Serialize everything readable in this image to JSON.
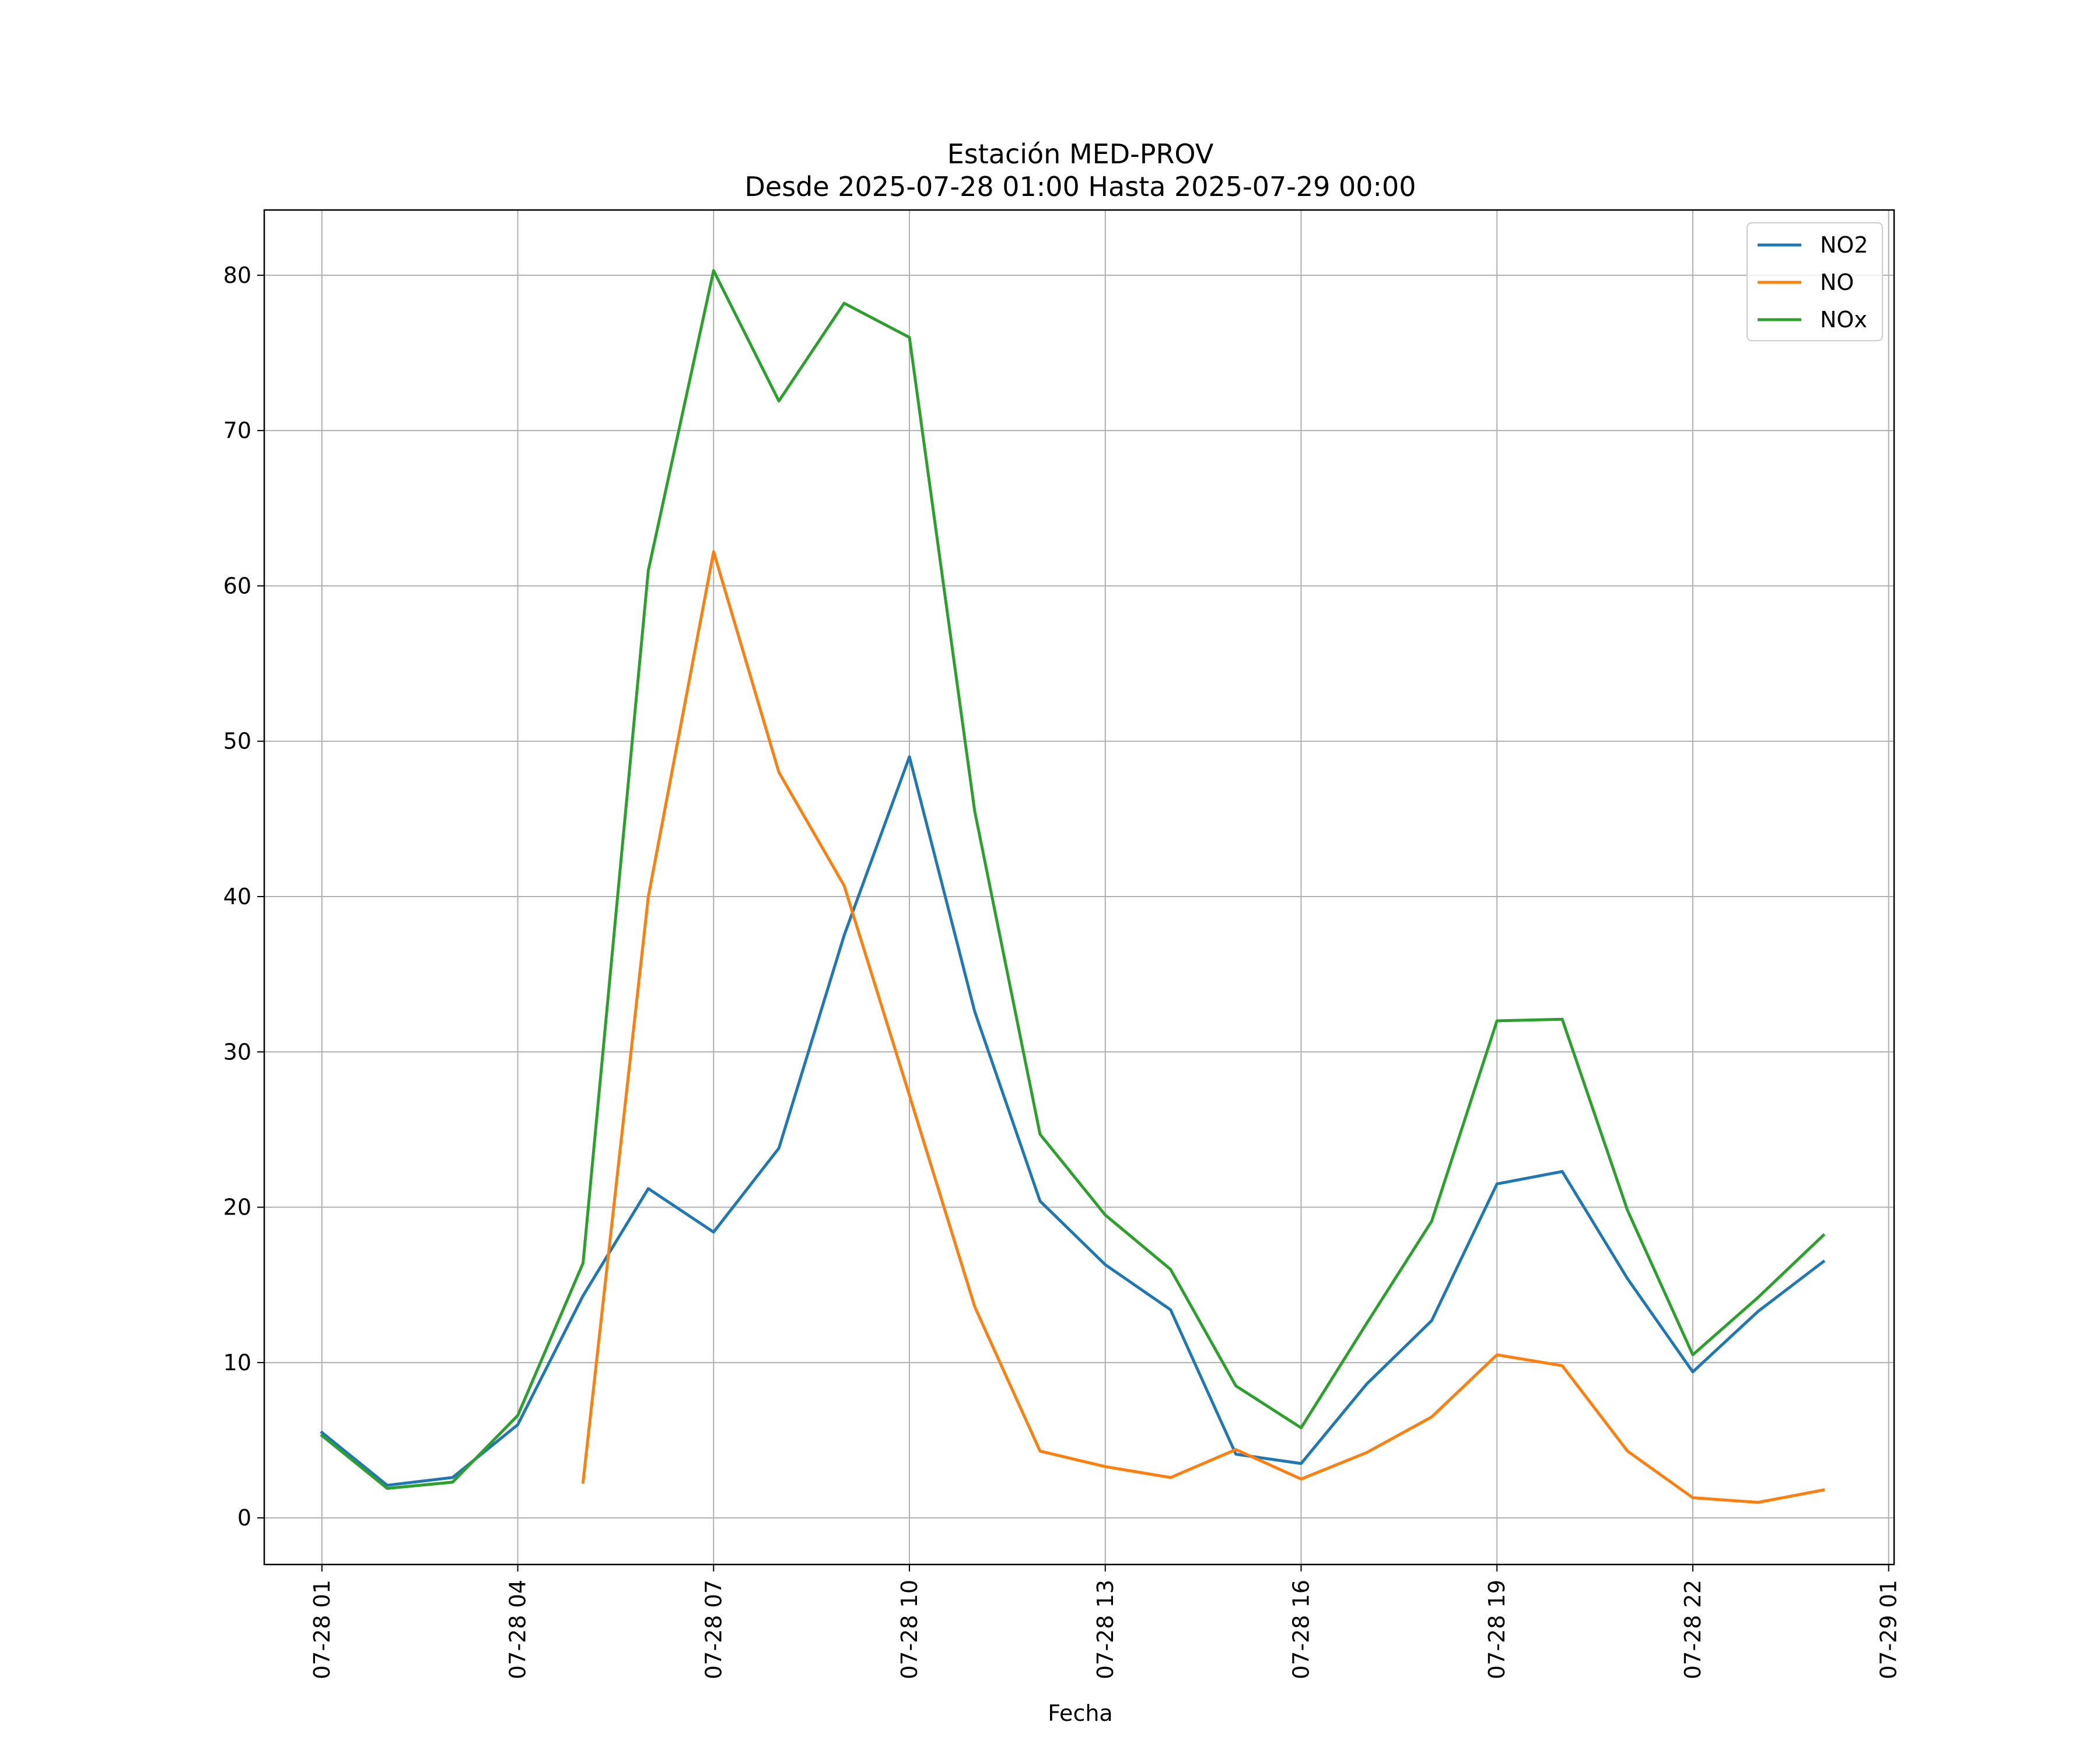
{
  "chart_data": {
    "type": "line",
    "title_line1": "Estación MED-PROV",
    "title_line2": "Desde 2025-07-28 01:00 Hasta 2025-07-29 00:00",
    "xlabel": "Fecha",
    "ylabel": "",
    "x": [
      "07-28 01",
      "07-28 02",
      "07-28 03",
      "07-28 04",
      "07-28 05",
      "07-28 06",
      "07-28 07",
      "07-28 08",
      "07-28 09",
      "07-28 10",
      "07-28 11",
      "07-28 12",
      "07-28 13",
      "07-28 14",
      "07-28 15",
      "07-28 16",
      "07-28 17",
      "07-28 18",
      "07-28 19",
      "07-28 20",
      "07-28 21",
      "07-28 22",
      "07-28 23",
      "07-29 00"
    ],
    "xticks": [
      "07-28 01",
      "07-28 04",
      "07-28 07",
      "07-28 10",
      "07-28 13",
      "07-28 16",
      "07-28 19",
      "07-28 22",
      "07-29 01"
    ],
    "xlim": [
      "07-28 00:07",
      "07-29 01:05"
    ],
    "yticks": [
      0,
      10,
      20,
      30,
      40,
      50,
      60,
      70,
      80
    ],
    "ylim": [
      -3,
      84.2
    ],
    "grid": true,
    "legend_position": "top-right",
    "series": [
      {
        "name": "NO2",
        "color": "#1f77b4",
        "values": [
          5.5,
          2.1,
          2.6,
          6.0,
          14.3,
          21.2,
          18.4,
          23.8,
          37.5,
          49.0,
          32.6,
          20.4,
          16.3,
          13.4,
          4.1,
          3.5,
          8.6,
          12.7,
          21.5,
          22.3,
          15.4,
          9.4,
          13.3,
          16.5
        ]
      },
      {
        "name": "NO",
        "color": "#ff7f0e",
        "values": [
          null,
          null,
          null,
          null,
          2.3,
          40.0,
          62.2,
          48.0,
          40.7,
          27.2,
          13.6,
          4.3,
          3.3,
          2.6,
          4.4,
          2.5,
          4.2,
          6.5,
          10.5,
          9.8,
          4.3,
          1.3,
          1.0,
          1.8
        ]
      },
      {
        "name": "NOx",
        "color": "#2ca02c",
        "values": [
          5.3,
          1.9,
          2.3,
          6.6,
          16.4,
          61.0,
          80.3,
          71.9,
          78.2,
          76.0,
          45.5,
          24.7,
          19.5,
          16.0,
          8.5,
          5.8,
          12.5,
          19.1,
          32.0,
          32.1,
          19.8,
          10.5,
          14.2,
          18.2
        ]
      }
    ]
  }
}
